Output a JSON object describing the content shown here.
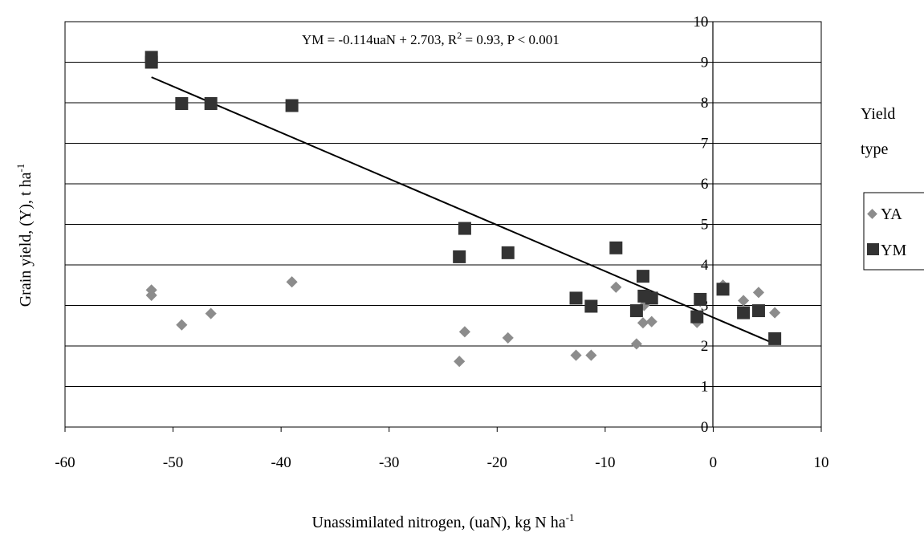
{
  "chart_data": {
    "type": "scatter",
    "xlabel": "Unassimilated nitrogen, (uaN), kg N ha",
    "xlabel_sup": "-1",
    "ylabel": "Grain yield, (Y), t ha",
    "ylabel_sup": "-1",
    "xlim": [
      -60,
      10
    ],
    "ylim": [
      0,
      10
    ],
    "x_ticks": [
      "-60",
      "-50",
      "-40",
      "-30",
      "-20",
      "-10",
      "0",
      "10"
    ],
    "y_ticks": [
      "0",
      "1",
      "2",
      "3",
      "4",
      "5",
      "6",
      "7",
      "8",
      "9",
      "10"
    ],
    "grid": "horizontal",
    "annotation": {
      "part1": "YM = -0.114uaN + 2.703,  R",
      "sup": "2",
      "part2": " = 0.93, P < 0.001"
    },
    "legend_title_line1": "Yield",
    "legend_title_line2": "type",
    "legend_position": "right",
    "series": [
      {
        "name": "YA",
        "marker": "diamond",
        "color": "#8c8c8c",
        "points": [
          [
            -52,
            3.38
          ],
          [
            -52,
            3.25
          ],
          [
            -49.2,
            2.52
          ],
          [
            -46.5,
            2.8
          ],
          [
            -39,
            3.58
          ],
          [
            -23.5,
            1.62
          ],
          [
            -23,
            2.35
          ],
          [
            -19,
            2.2
          ],
          [
            -12.7,
            1.77
          ],
          [
            -11.3,
            1.77
          ],
          [
            -9,
            3.45
          ],
          [
            -7.1,
            2.05
          ],
          [
            -6.5,
            2.57
          ],
          [
            -6.4,
            3.0
          ],
          [
            -5.7,
            2.6
          ],
          [
            -1.5,
            2.58
          ],
          [
            -1.2,
            3.1
          ],
          [
            0.9,
            3.5
          ],
          [
            2.8,
            3.12
          ],
          [
            4.2,
            3.32
          ],
          [
            5.7,
            2.82
          ]
        ]
      },
      {
        "name": "YM",
        "marker": "square",
        "color": "#333333",
        "points": [
          [
            -52,
            9.12
          ],
          [
            -52,
            9.0
          ],
          [
            -49.2,
            7.98
          ],
          [
            -46.5,
            7.98
          ],
          [
            -39,
            7.93
          ],
          [
            -23.5,
            4.2
          ],
          [
            -23,
            4.9
          ],
          [
            -19,
            4.3
          ],
          [
            -12.7,
            3.18
          ],
          [
            -11.3,
            2.98
          ],
          [
            -9,
            4.42
          ],
          [
            -7.1,
            2.87
          ],
          [
            -6.5,
            3.72
          ],
          [
            -6.4,
            3.23
          ],
          [
            -5.7,
            3.18
          ],
          [
            -1.5,
            2.72
          ],
          [
            -1.2,
            3.15
          ],
          [
            0.9,
            3.4
          ],
          [
            2.8,
            2.82
          ],
          [
            4.2,
            2.87
          ],
          [
            5.7,
            2.18
          ]
        ]
      }
    ],
    "trendline": {
      "slope": -0.114,
      "intercept": 2.703,
      "x_range": [
        -52,
        5.7
      ],
      "color": "#000000"
    },
    "colors": {
      "grid": "#000000",
      "axis": "#000000",
      "background": "#ffffff"
    }
  }
}
